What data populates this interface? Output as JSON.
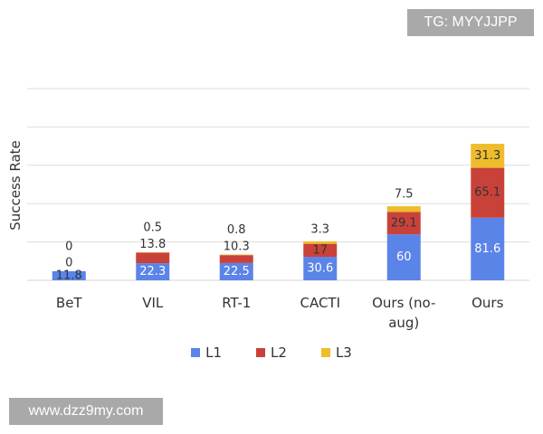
{
  "watermarks": {
    "top": "TG: MYYJJPP",
    "bottom": "www.dzz9my.com"
  },
  "colors": {
    "L1": "#5b84e8",
    "L2": "#c9423a",
    "L3": "#eebd2b",
    "grid": "#dddddd",
    "text": "#333333"
  },
  "chart_data": {
    "type": "bar",
    "stacked": true,
    "title": "",
    "xlabel": "",
    "ylabel": "Success Rate",
    "ylim": [
      0,
      250
    ],
    "categories": [
      "BeT",
      "VIL",
      "RT-1",
      "CACTI",
      "Ours (no-aug)",
      "Ours"
    ],
    "category_lines": [
      [
        "BeT"
      ],
      [
        "VIL"
      ],
      [
        "RT-1"
      ],
      [
        "CACTI"
      ],
      [
        "Ours (no-",
        "aug)"
      ],
      [
        "Ours"
      ]
    ],
    "series": [
      {
        "name": "L1",
        "values": [
          11.8,
          22.3,
          22.5,
          30.6,
          60,
          81.6
        ]
      },
      {
        "name": "L2",
        "values": [
          0,
          13.8,
          10.3,
          17,
          29.1,
          65.1
        ]
      },
      {
        "name": "L3",
        "values": [
          0,
          0.5,
          0.8,
          3.3,
          7.5,
          31.3
        ]
      }
    ],
    "legend": [
      "L1",
      "L2",
      "L3"
    ],
    "legend_position": "bottom"
  }
}
